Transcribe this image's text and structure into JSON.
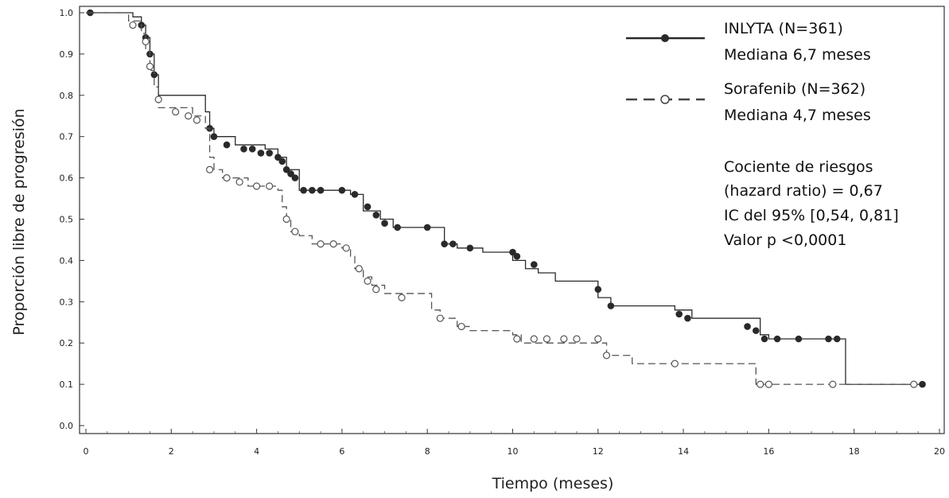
{
  "chart_data": {
    "type": "line",
    "subtype": "kaplan-meier-step",
    "title": "",
    "xlabel": "Tiempo (meses)",
    "ylabel": "Proporción libre de progresión",
    "xlim": [
      0,
      20
    ],
    "ylim": [
      0,
      1
    ],
    "x_ticks": [
      "0",
      "2",
      "4",
      "6",
      "8",
      "10",
      "12",
      "14",
      "16",
      "18",
      "20"
    ],
    "y_ticks": [
      "0.0",
      "0.1",
      "0.2",
      "0.3",
      "0.4",
      "0.5",
      "0.6",
      "0.7",
      "0.8",
      "0.9",
      "1.0"
    ],
    "grid": false,
    "legend_position": "top-right",
    "series": [
      {
        "name": "INLYTA (N=361)",
        "median_label": "Mediana 6,7 meses",
        "marker": "filled-circle",
        "line_style": "solid",
        "color": "#2a2a2a",
        "x": [
          0,
          1.1,
          1.3,
          1.4,
          1.5,
          1.6,
          1.7,
          2.8,
          2.9,
          3.0,
          3.5,
          4.2,
          4.5,
          4.7,
          5.0,
          6.2,
          6.5,
          6.9,
          7.2,
          8.4,
          8.7,
          9.3,
          10.0,
          10.3,
          10.6,
          11.0,
          12.0,
          12.3,
          13.8,
          14.2,
          15.8,
          16.0,
          17.8,
          19.6
        ],
        "y": [
          1.0,
          0.99,
          0.97,
          0.94,
          0.9,
          0.85,
          0.8,
          0.76,
          0.72,
          0.7,
          0.68,
          0.67,
          0.65,
          0.62,
          0.57,
          0.56,
          0.52,
          0.5,
          0.48,
          0.44,
          0.43,
          0.42,
          0.4,
          0.38,
          0.37,
          0.35,
          0.31,
          0.29,
          0.28,
          0.26,
          0.22,
          0.21,
          0.1,
          0.1
        ],
        "censor_x": [
          0.1,
          1.3,
          1.4,
          1.5,
          1.6,
          2.9,
          3.0,
          3.3,
          3.7,
          3.9,
          4.1,
          4.3,
          4.5,
          4.6,
          4.7,
          4.8,
          4.9,
          5.1,
          5.3,
          5.5,
          6.0,
          6.3,
          6.6,
          6.8,
          7.0,
          7.3,
          8.0,
          8.4,
          8.6,
          9.0,
          10.0,
          10.1,
          10.5,
          12.0,
          12.3,
          13.9,
          14.1,
          15.5,
          15.7,
          15.9,
          16.2,
          16.7,
          17.4,
          17.6,
          19.6
        ],
        "censor_y": [
          1.0,
          0.97,
          0.94,
          0.9,
          0.85,
          0.72,
          0.7,
          0.68,
          0.67,
          0.67,
          0.66,
          0.66,
          0.65,
          0.64,
          0.62,
          0.61,
          0.6,
          0.57,
          0.57,
          0.57,
          0.57,
          0.56,
          0.53,
          0.51,
          0.49,
          0.48,
          0.48,
          0.44,
          0.44,
          0.43,
          0.42,
          0.41,
          0.39,
          0.33,
          0.29,
          0.27,
          0.26,
          0.24,
          0.23,
          0.21,
          0.21,
          0.21,
          0.21,
          0.21,
          0.1
        ]
      },
      {
        "name": "Sorafenib (N=362)",
        "median_label": "Mediana 4,7 meses",
        "marker": "open-circle",
        "line_style": "dashed",
        "color": "#555555",
        "x": [
          0,
          1.0,
          1.3,
          1.4,
          1.5,
          1.6,
          1.7,
          2.5,
          2.8,
          2.9,
          3.0,
          3.2,
          3.8,
          4.5,
          4.6,
          4.7,
          4.8,
          5.0,
          5.3,
          6.0,
          6.2,
          6.3,
          6.5,
          6.7,
          7.0,
          8.1,
          8.3,
          8.7,
          9.0,
          10.0,
          10.2,
          12.2,
          12.8,
          15.7,
          17.8,
          19.5
        ],
        "y": [
          1.0,
          0.98,
          0.95,
          0.91,
          0.86,
          0.82,
          0.77,
          0.75,
          0.72,
          0.65,
          0.62,
          0.6,
          0.58,
          0.57,
          0.53,
          0.5,
          0.47,
          0.46,
          0.44,
          0.43,
          0.41,
          0.38,
          0.36,
          0.34,
          0.32,
          0.28,
          0.26,
          0.24,
          0.23,
          0.22,
          0.2,
          0.17,
          0.15,
          0.1,
          0.1,
          0.1
        ],
        "censor_x": [
          1.1,
          1.4,
          1.5,
          1.7,
          2.1,
          2.4,
          2.6,
          2.9,
          3.3,
          3.6,
          4.0,
          4.3,
          4.7,
          4.9,
          5.5,
          5.8,
          6.1,
          6.4,
          6.6,
          6.8,
          7.4,
          8.3,
          8.8,
          10.1,
          10.5,
          10.8,
          11.2,
          11.5,
          12.0,
          12.2,
          13.8,
          15.8,
          16.0,
          17.5,
          19.4
        ],
        "censor_y": [
          0.97,
          0.93,
          0.87,
          0.79,
          0.76,
          0.75,
          0.74,
          0.62,
          0.6,
          0.59,
          0.58,
          0.58,
          0.5,
          0.47,
          0.44,
          0.44,
          0.43,
          0.38,
          0.35,
          0.33,
          0.31,
          0.26,
          0.24,
          0.21,
          0.21,
          0.21,
          0.21,
          0.21,
          0.21,
          0.17,
          0.15,
          0.1,
          0.1,
          0.1,
          0.1
        ]
      }
    ],
    "annotations": [
      "Cociente de riesgos",
      "(hazard ratio) = 0,67",
      "IC del 95% [0,54, 0,81]",
      "Valor p <0,0001"
    ]
  }
}
